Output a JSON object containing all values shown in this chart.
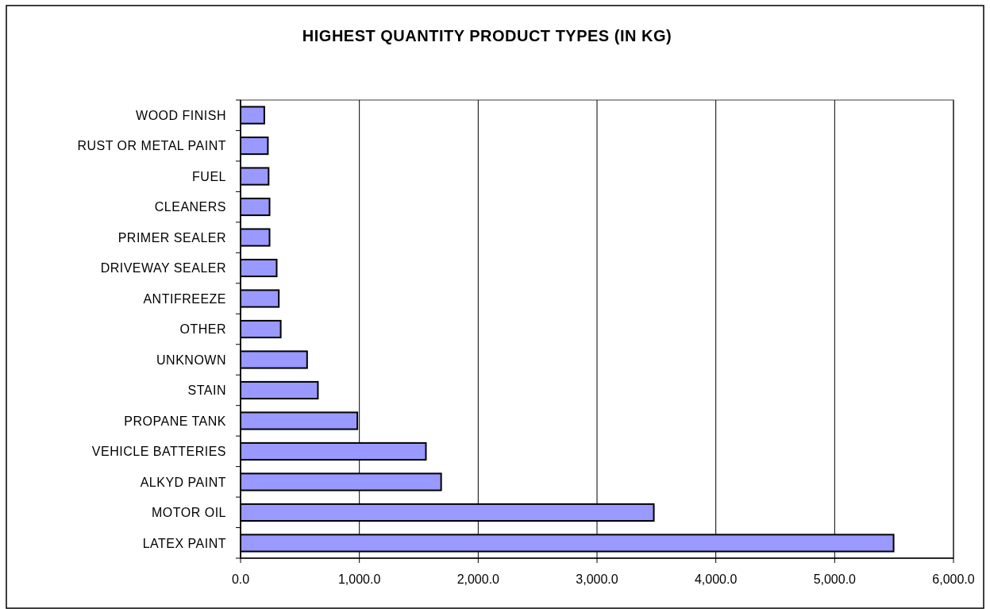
{
  "chart_data": {
    "type": "bar",
    "orientation": "horizontal",
    "title": "HIGHEST QUANTITY PRODUCT TYPES (IN KG)",
    "categories": [
      "WOOD FINISH",
      "RUST OR METAL PAINT",
      "FUEL",
      "CLEANERS",
      "PRIMER SEALER",
      "DRIVEWAY SEALER",
      "ANTIFREEZE",
      "OTHER",
      "UNKNOWN",
      "STAIN",
      "PROPANE TANK",
      "VEHICLE BATTERIES",
      "ALKYD PAINT",
      "MOTOR OIL",
      "LATEX PAINT"
    ],
    "values": [
      200,
      230,
      236,
      244,
      244,
      304,
      322,
      338,
      560,
      651,
      983,
      1560,
      1688,
      3478,
      5496
    ],
    "color": "#9999ff",
    "xlim": [
      0,
      6000
    ],
    "xticks": [
      {
        "value": 0,
        "label": "0.0"
      },
      {
        "value": 1000,
        "label": "1,000.0"
      },
      {
        "value": 2000,
        "label": "2,000.0"
      },
      {
        "value": 3000,
        "label": "3,000.0"
      },
      {
        "value": 4000,
        "label": "4,000.0"
      },
      {
        "value": 5000,
        "label": "5,000.0"
      },
      {
        "value": 6000,
        "label": "6,000.0"
      }
    ],
    "grid": "x"
  }
}
